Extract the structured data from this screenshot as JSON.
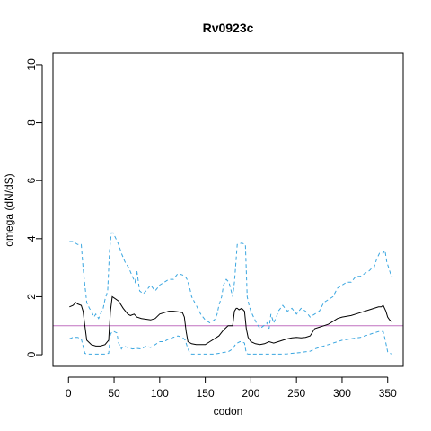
{
  "chart_data": {
    "type": "line",
    "title": "Rv0923c",
    "xlabel": "codon",
    "ylabel": "omega (dN/dS)",
    "xlim": [
      -17,
      367
    ],
    "ylim": [
      -0.4,
      10.4
    ],
    "xticks": [
      0,
      50,
      100,
      150,
      200,
      250,
      300,
      350
    ],
    "yticks": [
      0,
      2,
      4,
      6,
      8,
      10
    ],
    "grid": false,
    "colors": {
      "estimate": "#000000",
      "bounds": "#3aa6e0",
      "reference": "#c070c0"
    },
    "reference_line": {
      "y": 1
    },
    "series": [
      {
        "style": "solid",
        "color": "#000000",
        "x": [
          1,
          5,
          8,
          10,
          14,
          16,
          18,
          20,
          25,
          30,
          35,
          40,
          44,
          46,
          48,
          55,
          60,
          65,
          68,
          72,
          75,
          80,
          90,
          95,
          100,
          105,
          110,
          115,
          120,
          125,
          127,
          129,
          131,
          135,
          140,
          145,
          150,
          155,
          160,
          165,
          170,
          175,
          180,
          182,
          184,
          185,
          187,
          190,
          193,
          195,
          197,
          200,
          205,
          210,
          215,
          220,
          225,
          230,
          235,
          240,
          245,
          250,
          255,
          260,
          265,
          270,
          275,
          280,
          285,
          290,
          295,
          300,
          310,
          320,
          330,
          335,
          340,
          343,
          345,
          348,
          350,
          352,
          355
        ],
        "y": [
          1.65,
          1.7,
          1.8,
          1.75,
          1.7,
          1.5,
          1.0,
          0.5,
          0.35,
          0.3,
          0.3,
          0.35,
          0.5,
          1.5,
          2.0,
          1.85,
          1.6,
          1.4,
          1.35,
          1.4,
          1.3,
          1.25,
          1.2,
          1.25,
          1.4,
          1.45,
          1.5,
          1.5,
          1.48,
          1.45,
          1.3,
          0.8,
          0.45,
          0.38,
          0.35,
          0.35,
          0.35,
          0.45,
          0.55,
          0.65,
          0.85,
          1.0,
          1.0,
          1.5,
          1.6,
          1.6,
          1.55,
          1.6,
          1.5,
          0.9,
          0.6,
          0.45,
          0.38,
          0.35,
          0.38,
          0.45,
          0.4,
          0.45,
          0.5,
          0.55,
          0.58,
          0.6,
          0.58,
          0.6,
          0.65,
          0.9,
          0.95,
          1.0,
          1.05,
          1.15,
          1.25,
          1.3,
          1.35,
          1.45,
          1.55,
          1.6,
          1.65,
          1.65,
          1.7,
          1.5,
          1.3,
          1.2,
          1.15
        ]
      },
      {
        "style": "dashed",
        "color": "#3aa6e0",
        "x": [
          1,
          5,
          10,
          14,
          16,
          18,
          20,
          23,
          25,
          28,
          30,
          33,
          35,
          38,
          40,
          43,
          45,
          47,
          49,
          52,
          55,
          58,
          62,
          66,
          70,
          73,
          75,
          78,
          82,
          85,
          90,
          95,
          100,
          105,
          110,
          115,
          120,
          125,
          128,
          130,
          133,
          135,
          140,
          145,
          150,
          155,
          160,
          163,
          165,
          168,
          170,
          173,
          176,
          180,
          182,
          185,
          190,
          194,
          196,
          198,
          200,
          203,
          206,
          210,
          214,
          218,
          220,
          222,
          225,
          228,
          230,
          235,
          240,
          245,
          250,
          255,
          260,
          265,
          270,
          275,
          280,
          285,
          290,
          295,
          300,
          305,
          310,
          315,
          320,
          325,
          330,
          333,
          335,
          338,
          341,
          343,
          345,
          347,
          349,
          351,
          353,
          355
        ],
        "y": [
          3.9,
          3.9,
          3.8,
          3.8,
          3.0,
          2.4,
          1.8,
          1.6,
          1.5,
          1.3,
          1.4,
          1.25,
          1.4,
          1.6,
          1.9,
          2.2,
          3.6,
          4.2,
          4.2,
          4.0,
          3.8,
          3.5,
          3.2,
          3.0,
          2.7,
          2.5,
          2.9,
          2.2,
          2.1,
          2.2,
          2.4,
          2.2,
          2.4,
          2.5,
          2.6,
          2.6,
          2.8,
          2.75,
          2.7,
          2.6,
          2.3,
          2.0,
          1.7,
          1.4,
          1.2,
          1.1,
          1.2,
          1.4,
          1.7,
          2.0,
          2.4,
          2.6,
          2.5,
          2.0,
          2.5,
          3.8,
          3.85,
          3.8,
          2.0,
          1.7,
          1.5,
          1.3,
          1.1,
          0.9,
          1.0,
          1.1,
          0.9,
          1.4,
          1.1,
          1.3,
          1.5,
          1.7,
          1.5,
          1.6,
          1.4,
          1.6,
          1.5,
          1.3,
          1.4,
          1.5,
          1.8,
          1.9,
          2.0,
          2.3,
          2.4,
          2.5,
          2.5,
          2.7,
          2.7,
          2.8,
          2.9,
          3.0,
          3.0,
          3.3,
          3.5,
          3.5,
          3.5,
          3.6,
          3.2,
          3.0,
          2.8,
          2.7
        ]
      },
      {
        "style": "dashed",
        "color": "#3aa6e0",
        "x": [
          1,
          5,
          10,
          14,
          16,
          18,
          20,
          25,
          30,
          35,
          40,
          44,
          46,
          48,
          50,
          53,
          55,
          58,
          60,
          65,
          70,
          75,
          80,
          85,
          90,
          95,
          100,
          105,
          110,
          115,
          120,
          125,
          128,
          130,
          133,
          135,
          140,
          145,
          150,
          155,
          160,
          165,
          170,
          175,
          180,
          183,
          185,
          188,
          190,
          193,
          195,
          197,
          200,
          205,
          210,
          215,
          220,
          225,
          230,
          235,
          240,
          245,
          250,
          255,
          260,
          265,
          270,
          275,
          280,
          285,
          290,
          295,
          300,
          310,
          320,
          330,
          335,
          340,
          343,
          345,
          347,
          350,
          352,
          355
        ],
        "y": [
          0.55,
          0.6,
          0.6,
          0.55,
          0.3,
          0.05,
          0.02,
          0.02,
          0.02,
          0.02,
          0.02,
          0.05,
          0.7,
          0.8,
          0.8,
          0.75,
          0.4,
          0.2,
          0.3,
          0.25,
          0.2,
          0.22,
          0.2,
          0.3,
          0.25,
          0.35,
          0.45,
          0.45,
          0.55,
          0.6,
          0.65,
          0.6,
          0.5,
          0.3,
          0.05,
          0.02,
          0.02,
          0.02,
          0.02,
          0.02,
          0.02,
          0.05,
          0.08,
          0.1,
          0.2,
          0.35,
          0.4,
          0.45,
          0.45,
          0.4,
          0.05,
          0.02,
          0.02,
          0.02,
          0.02,
          0.02,
          0.02,
          0.02,
          0.02,
          0.02,
          0.03,
          0.05,
          0.06,
          0.08,
          0.1,
          0.12,
          0.2,
          0.25,
          0.3,
          0.35,
          0.4,
          0.45,
          0.5,
          0.55,
          0.6,
          0.7,
          0.75,
          0.8,
          0.8,
          0.8,
          0.55,
          0.1,
          0.05,
          0.03
        ]
      }
    ]
  }
}
